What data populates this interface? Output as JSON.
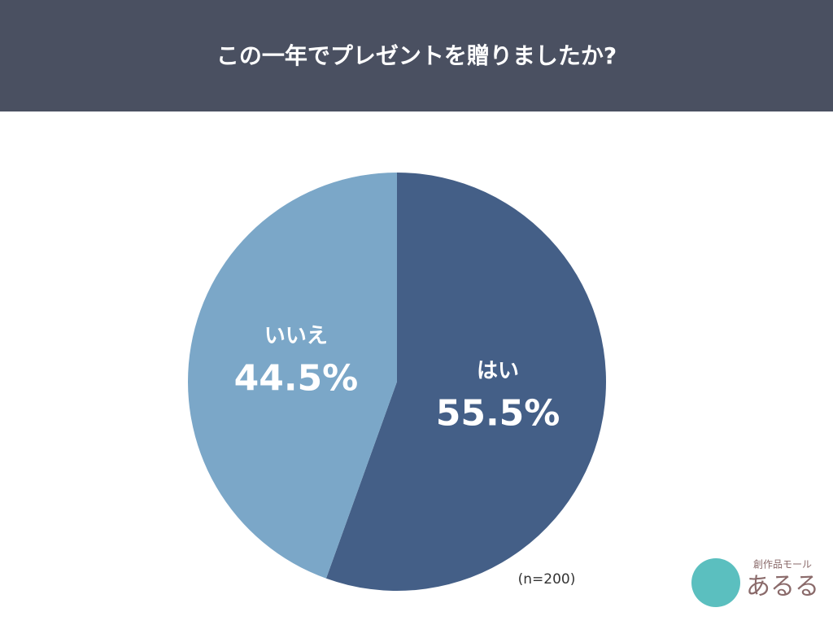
{
  "chart_data": {
    "type": "pie",
    "title": "この一年でプレゼントを贈りましたか?",
    "categories": [
      "はい",
      "いいえ"
    ],
    "values": [
      55.5,
      44.5
    ],
    "value_labels": [
      "55.5%",
      "44.5%"
    ],
    "colors": [
      "#445f87",
      "#7ba7c8"
    ],
    "note": "(n=200)"
  },
  "logo": {
    "tagline": "創作品モール",
    "name": "あるる"
  }
}
